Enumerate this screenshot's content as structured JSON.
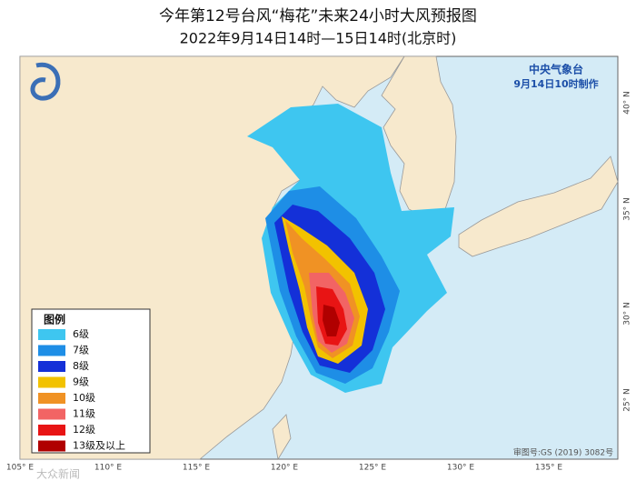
{
  "title": "今年第12号台风“梅花”未来24小时大风预报图",
  "subtitle": "2022年9月14日14时—15日14时(北京时)",
  "agency": "中央气象台",
  "issued": "9月14日10时制作",
  "legend": {
    "title": "图例",
    "items": [
      {
        "label": "6级",
        "color": "#3ec6f0"
      },
      {
        "label": "7级",
        "color": "#1e8ee6"
      },
      {
        "label": "8级",
        "color": "#1430d8"
      },
      {
        "label": "9级",
        "color": "#f2c200"
      },
      {
        "label": "10级",
        "color": "#f09224"
      },
      {
        "label": "11级",
        "color": "#f26464"
      },
      {
        "label": "12级",
        "color": "#e81414"
      },
      {
        "label": "13级及以上",
        "color": "#b00000"
      }
    ]
  },
  "lon_labels": [
    "105° E",
    "110° E",
    "115° E",
    "120° E",
    "125° E",
    "130° E",
    "135° E"
  ],
  "lat_labels": [
    "40° N",
    "35° N",
    "30° N",
    "25° N"
  ],
  "source": "审图号:GS (2019) 3082号",
  "watermark": "大众新闻"
}
